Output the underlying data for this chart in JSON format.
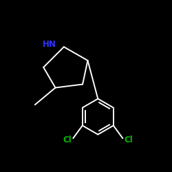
{
  "background_color": "#000000",
  "line_color": "#ffffff",
  "HN_color": "#3333ff",
  "Cl_color": "#00bb00",
  "HN_label": "HN",
  "Cl_label": "Cl",
  "figsize": [
    2.5,
    2.5
  ],
  "dpi": 100,
  "lw": 1.4
}
